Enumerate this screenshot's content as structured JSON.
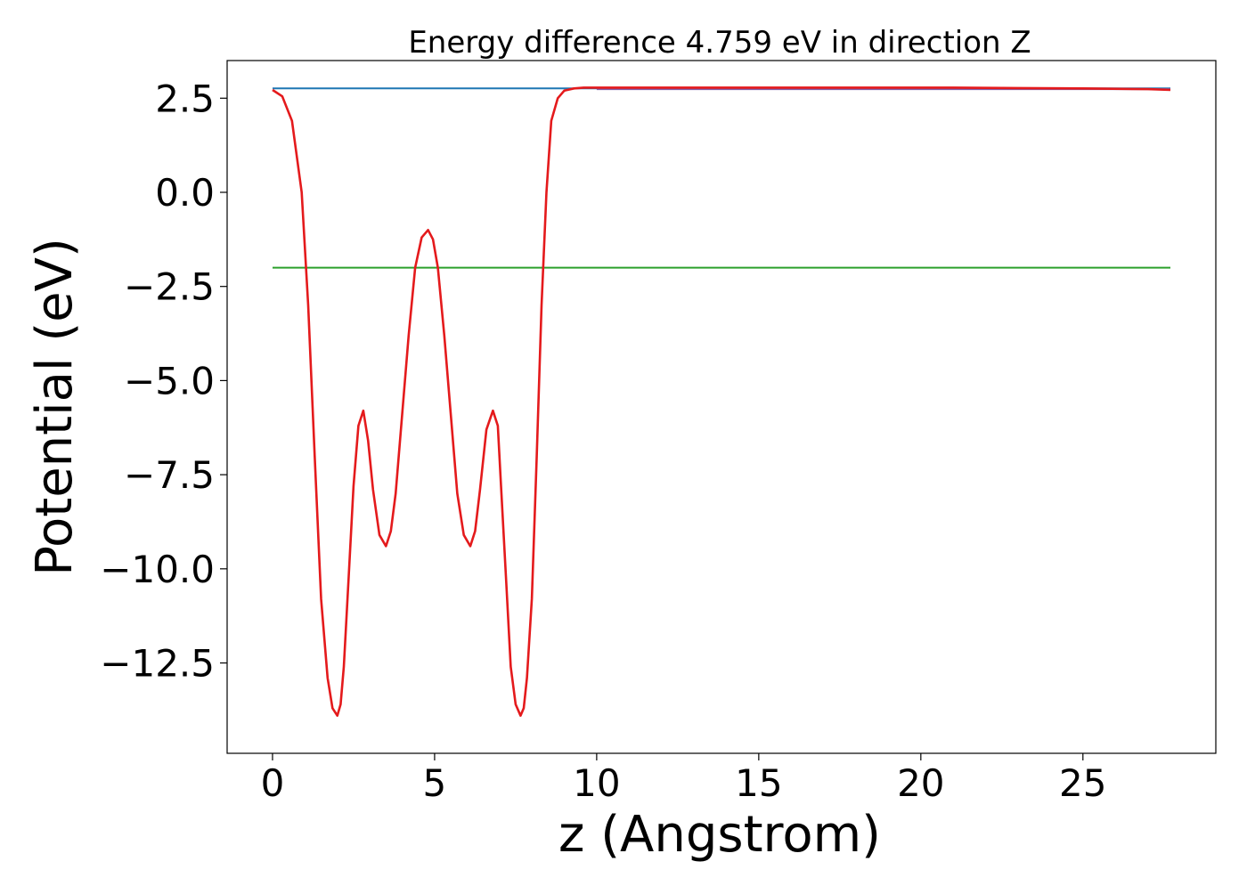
{
  "chart_data": {
    "type": "line",
    "title": "Energy difference 4.759 eV in direction Z",
    "xlabel": "z (Angstrom)",
    "ylabel": "Potential (eV)",
    "xlim": [
      -1.4,
      29.1
    ],
    "ylim": [
      -14.9,
      3.5
    ],
    "xticks": [
      {
        "value": 0,
        "label": "0"
      },
      {
        "value": 5,
        "label": "5"
      },
      {
        "value": 10,
        "label": "10"
      },
      {
        "value": 15,
        "label": "15"
      },
      {
        "value": 20,
        "label": "20"
      },
      {
        "value": 25,
        "label": "25"
      }
    ],
    "yticks": [
      {
        "value": 2.5,
        "label": "2.5"
      },
      {
        "value": 0,
        "label": "0.0"
      },
      {
        "value": -2.5,
        "label": "−2.5"
      },
      {
        "value": -5,
        "label": "−5.0"
      },
      {
        "value": -7.5,
        "label": "−7.5"
      },
      {
        "value": -10,
        "label": "−10.0"
      },
      {
        "value": -12.5,
        "label": "−12.5"
      }
    ],
    "grid": false,
    "series": [
      {
        "color": "#1f77b4",
        "x": [
          0,
          27.7
        ],
        "y": [
          2.76,
          2.76
        ]
      },
      {
        "color": "#2ca02c",
        "x": [
          0,
          27.7
        ],
        "y": [
          -2.0,
          -2.0
        ]
      },
      {
        "color": "#7f5fa8",
        "x": [
          10.0,
          27.7
        ],
        "y": [
          2.74,
          2.74
        ]
      },
      {
        "color": "#e41a1c",
        "x": [
          0,
          0.3,
          0.6,
          0.9,
          1.1,
          1.3,
          1.5,
          1.7,
          1.85,
          2.0,
          2.1,
          2.2,
          2.35,
          2.5,
          2.65,
          2.8,
          2.95,
          3.1,
          3.3,
          3.5,
          3.65,
          3.8,
          4.0,
          4.2,
          4.4,
          4.6,
          4.8,
          4.95,
          5.1,
          5.3,
          5.5,
          5.7,
          5.9,
          6.1,
          6.25,
          6.4,
          6.6,
          6.8,
          6.95,
          7.05,
          7.2,
          7.35,
          7.5,
          7.65,
          7.75,
          7.85,
          8.0,
          8.15,
          8.3,
          8.45,
          8.6,
          8.8,
          9.0,
          9.3,
          9.6,
          10.0,
          10.5,
          11,
          13,
          15,
          17,
          19,
          21,
          23,
          25,
          27,
          27.7
        ],
        "y": [
          2.72,
          2.55,
          1.9,
          0.0,
          -3.0,
          -7.0,
          -10.8,
          -12.9,
          -13.7,
          -13.9,
          -13.6,
          -12.6,
          -10.2,
          -7.8,
          -6.2,
          -5.8,
          -6.6,
          -7.9,
          -9.1,
          -9.4,
          -9.0,
          -8.0,
          -5.9,
          -3.8,
          -2.0,
          -1.2,
          -1.0,
          -1.25,
          -2.0,
          -3.8,
          -5.9,
          -8.0,
          -9.1,
          -9.4,
          -9.0,
          -7.9,
          -6.3,
          -5.8,
          -6.2,
          -7.8,
          -10.2,
          -12.6,
          -13.6,
          -13.9,
          -13.7,
          -12.9,
          -10.8,
          -7.0,
          -3.0,
          0.0,
          1.9,
          2.5,
          2.7,
          2.76,
          2.78,
          2.78,
          2.78,
          2.78,
          2.78,
          2.78,
          2.78,
          2.78,
          2.78,
          2.77,
          2.76,
          2.74,
          2.72
        ]
      }
    ]
  }
}
